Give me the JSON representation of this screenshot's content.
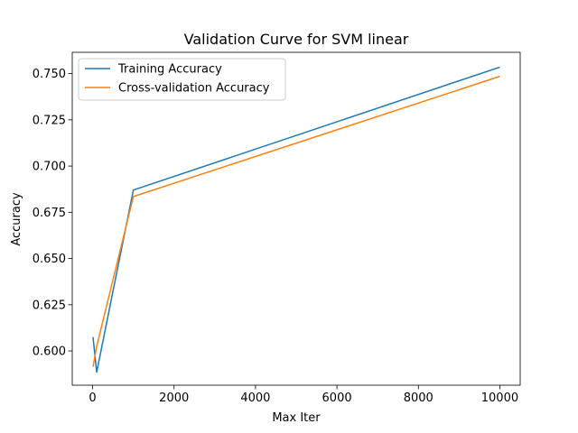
{
  "chart_data": {
    "type": "line",
    "title": "Validation Curve for SVM linear",
    "xlabel": "Max Iter",
    "ylabel": "Accuracy",
    "xlim": [
      -500,
      10500
    ],
    "ylim": [
      0.5815,
      0.7615
    ],
    "xticks": [
      0,
      2000,
      4000,
      6000,
      8000,
      10000
    ],
    "xtick_labels": [
      "0",
      "2000",
      "4000",
      "6000",
      "8000",
      "10000"
    ],
    "yticks": [
      0.6,
      0.625,
      0.65,
      0.675,
      0.7,
      0.725,
      0.75
    ],
    "ytick_labels": [
      "0.600",
      "0.625",
      "0.650",
      "0.675",
      "0.700",
      "0.725",
      "0.750"
    ],
    "grid": false,
    "legend_position": "top-left",
    "x": [
      10,
      100,
      1000,
      10000
    ],
    "series": [
      {
        "name": "Training Accuracy",
        "color": "#1f77b4",
        "values": [
          0.6075,
          0.5885,
          0.687,
          0.7535
        ]
      },
      {
        "name": "Cross-validation Accuracy",
        "color": "#ff7f0e",
        "values": [
          0.5915,
          0.6025,
          0.6835,
          0.7485
        ]
      }
    ]
  }
}
